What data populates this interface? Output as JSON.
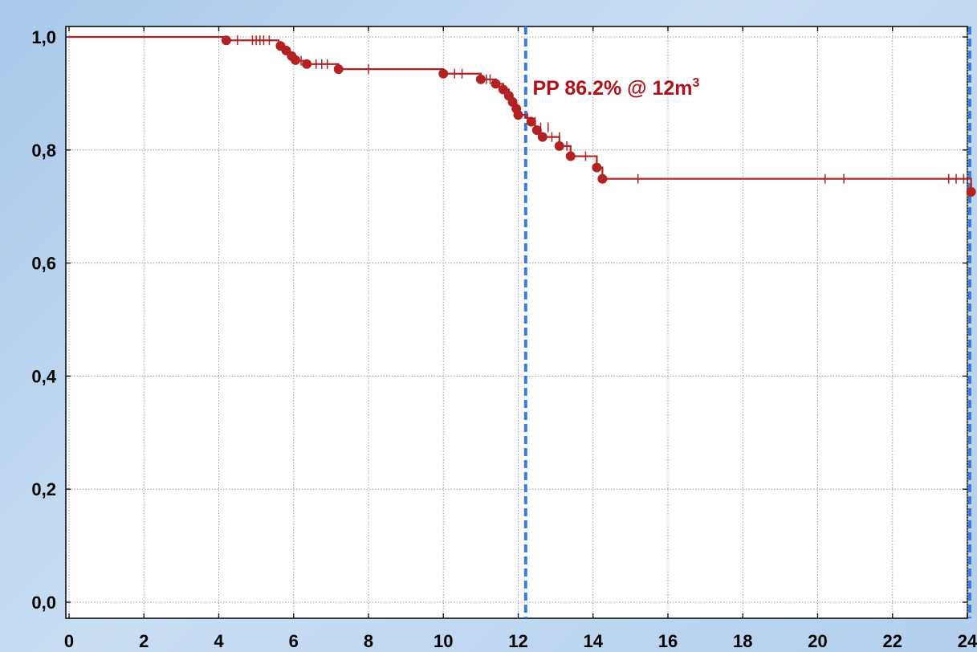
{
  "chart_data": {
    "type": "line",
    "subtype": "kaplan-meier step curve",
    "title": "",
    "xlabel": "",
    "ylabel": "",
    "xlim": [
      0,
      24
    ],
    "ylim": [
      0,
      1
    ],
    "grid": true,
    "x_ticks": [
      0,
      2,
      4,
      6,
      8,
      10,
      12,
      14,
      16,
      18,
      20,
      22,
      24
    ],
    "y_ticks": [
      0.0,
      0.2,
      0.4,
      0.6,
      0.8,
      1.0
    ],
    "x_tick_labels": [
      "0",
      "2",
      "4",
      "6",
      "8",
      "10",
      "12",
      "14",
      "16",
      "18",
      "20",
      "22",
      "24"
    ],
    "y_tick_labels": [
      "0,0",
      "0,2",
      "0,4",
      "0,6",
      "0,8",
      "1,0"
    ],
    "colors": {
      "series": "#b22222",
      "reference_line": "#3b7ddd",
      "annotation": "#b0101a"
    },
    "series": [
      {
        "steps": [
          [
            0,
            1.0
          ],
          [
            4.2,
            0.994
          ],
          [
            5.6,
            0.987
          ],
          [
            5.7,
            0.982
          ],
          [
            5.8,
            0.976
          ],
          [
            5.9,
            0.969
          ],
          [
            6.0,
            0.961
          ],
          [
            6.1,
            0.958
          ],
          [
            6.35,
            0.952
          ],
          [
            7.2,
            0.943
          ],
          [
            10.0,
            0.935
          ],
          [
            11.0,
            0.925
          ],
          [
            11.4,
            0.917
          ],
          [
            11.6,
            0.907
          ],
          [
            11.75,
            0.896
          ],
          [
            11.85,
            0.885
          ],
          [
            11.95,
            0.873
          ],
          [
            12.0,
            0.862
          ],
          [
            12.2,
            0.857
          ],
          [
            12.35,
            0.85
          ],
          [
            12.45,
            0.84
          ],
          [
            12.55,
            0.83
          ],
          [
            12.65,
            0.823
          ],
          [
            13.1,
            0.807
          ],
          [
            13.4,
            0.789
          ],
          [
            14.1,
            0.769
          ],
          [
            14.25,
            0.749
          ],
          [
            24.0,
            0.749
          ],
          [
            24.1,
            0.726
          ]
        ],
        "events": [
          [
            4.2,
            0.994
          ],
          [
            5.65,
            0.984
          ],
          [
            5.8,
            0.976
          ],
          [
            5.95,
            0.966
          ],
          [
            6.05,
            0.959
          ],
          [
            6.35,
            0.952
          ],
          [
            7.2,
            0.943
          ],
          [
            10.0,
            0.935
          ],
          [
            11.0,
            0.925
          ],
          [
            11.4,
            0.917
          ],
          [
            11.6,
            0.907
          ],
          [
            11.75,
            0.896
          ],
          [
            11.85,
            0.885
          ],
          [
            11.95,
            0.873
          ],
          [
            12.0,
            0.862
          ],
          [
            12.35,
            0.85
          ],
          [
            12.5,
            0.835
          ],
          [
            12.65,
            0.823
          ],
          [
            13.1,
            0.807
          ],
          [
            13.4,
            0.789
          ],
          [
            14.1,
            0.769
          ],
          [
            14.25,
            0.749
          ],
          [
            24.1,
            0.726
          ]
        ],
        "censored": [
          [
            4.5,
            0.994
          ],
          [
            4.9,
            0.994
          ],
          [
            5.0,
            0.994
          ],
          [
            5.1,
            0.994
          ],
          [
            5.2,
            0.994
          ],
          [
            5.35,
            0.994
          ],
          [
            6.2,
            0.958
          ],
          [
            6.6,
            0.952
          ],
          [
            6.75,
            0.952
          ],
          [
            6.9,
            0.952
          ],
          [
            8.0,
            0.943
          ],
          [
            10.3,
            0.935
          ],
          [
            10.5,
            0.935
          ],
          [
            11.15,
            0.925
          ],
          [
            11.25,
            0.925
          ],
          [
            12.25,
            0.857
          ],
          [
            12.45,
            0.85
          ],
          [
            12.6,
            0.84
          ],
          [
            12.8,
            0.84
          ],
          [
            12.9,
            0.823
          ],
          [
            13.1,
            0.823
          ],
          [
            13.3,
            0.807
          ],
          [
            13.8,
            0.789
          ],
          [
            15.2,
            0.749
          ],
          [
            20.2,
            0.749
          ],
          [
            20.7,
            0.749
          ],
          [
            23.5,
            0.749
          ],
          [
            23.7,
            0.749
          ],
          [
            23.9,
            0.749
          ]
        ]
      }
    ],
    "reference_lines": [
      {
        "x": 12.2
      },
      {
        "x": 24.1
      }
    ],
    "annotations": [
      {
        "text": "PP 86.2% @ 12m",
        "superscript": "3",
        "x": 12.3,
        "y": 0.935
      }
    ]
  }
}
